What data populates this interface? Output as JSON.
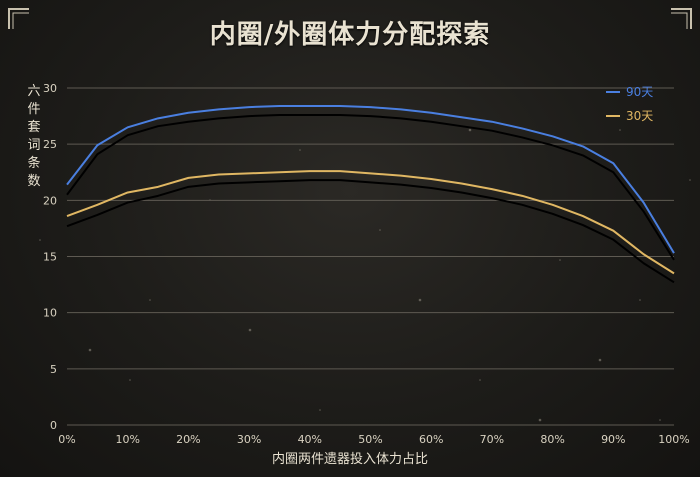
{
  "title": "内圈/外圈体力分配探索",
  "chart_data": {
    "type": "line",
    "title": "内圈/外圈体力分配探索",
    "xlabel": "内圈两件遗器投入体力占比",
    "ylabel": "六件套词条数",
    "xlim": [
      0,
      100
    ],
    "ylim": [
      0,
      30
    ],
    "x_ticks": [
      "0%",
      "10%",
      "20%",
      "30%",
      "40%",
      "50%",
      "60%",
      "70%",
      "80%",
      "90%",
      "100%"
    ],
    "y_ticks": [
      "0",
      "5",
      "10",
      "15",
      "20",
      "25",
      "30"
    ],
    "grid": true,
    "legend_position": "top-right",
    "x": [
      0,
      5,
      10,
      15,
      20,
      25,
      30,
      35,
      40,
      45,
      50,
      55,
      60,
      65,
      70,
      75,
      80,
      85,
      90,
      95,
      100
    ],
    "series": [
      {
        "name": "90天",
        "color": "#4a7fe0",
        "values": [
          21.4,
          24.9,
          26.5,
          27.3,
          27.8,
          28.1,
          28.3,
          28.4,
          28.4,
          28.4,
          28.3,
          28.1,
          27.8,
          27.4,
          27.0,
          26.4,
          25.7,
          24.8,
          23.3,
          19.8,
          15.3
        ]
      },
      {
        "name": "30天",
        "color": "#e0b763",
        "values": [
          18.6,
          19.6,
          20.7,
          21.2,
          22.0,
          22.3,
          22.4,
          22.5,
          22.6,
          22.6,
          22.4,
          22.2,
          21.9,
          21.5,
          21.0,
          20.4,
          19.6,
          18.6,
          17.3,
          15.2,
          13.5
        ]
      }
    ],
    "shadow_series": [
      {
        "color": "#000000",
        "values": [
          20.5,
          24.1,
          25.8,
          26.6,
          27.0,
          27.3,
          27.5,
          27.6,
          27.6,
          27.6,
          27.5,
          27.3,
          27.0,
          26.6,
          26.2,
          25.6,
          24.9,
          24.0,
          22.5,
          19.0,
          14.7
        ]
      },
      {
        "color": "#000000",
        "values": [
          17.7,
          18.7,
          19.8,
          20.4,
          21.2,
          21.5,
          21.6,
          21.7,
          21.8,
          21.8,
          21.6,
          21.4,
          21.1,
          20.7,
          20.2,
          19.6,
          18.8,
          17.8,
          16.5,
          14.4,
          12.7
        ]
      }
    ]
  }
}
